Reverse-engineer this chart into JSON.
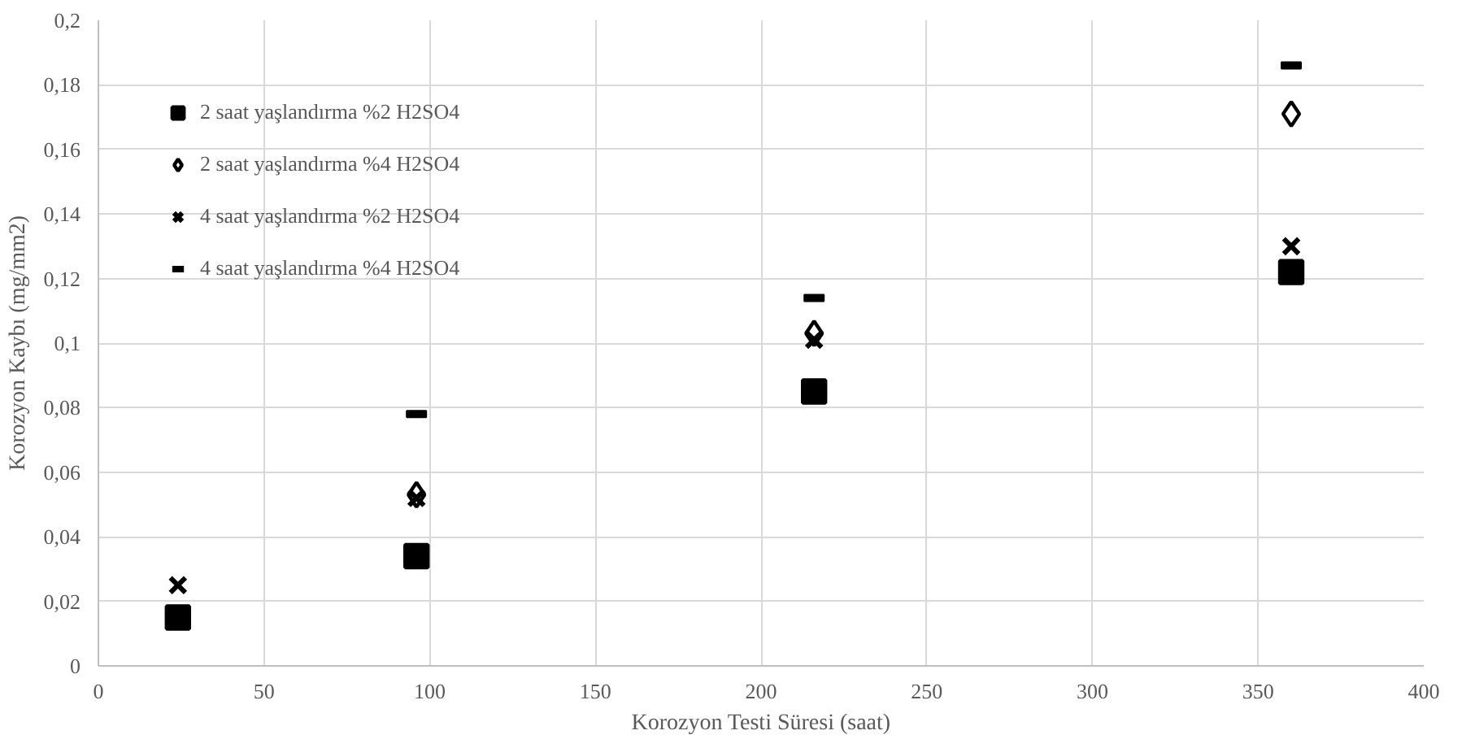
{
  "chart_data": {
    "type": "scatter",
    "xlabel": "Korozyon Testi Süresi (saat)",
    "ylabel": "Korozyon Kaybı (mg/mm2)",
    "x": [
      24,
      96,
      216,
      360
    ],
    "series": [
      {
        "name": "2 saat yaşlandırma %2 H2SO4",
        "color": "#000000",
        "marker": "square",
        "values": [
          0.015,
          0.034,
          0.085,
          0.122
        ]
      },
      {
        "name": "2 saat yaşlandırma %4 H2SO4",
        "color": "#000000",
        "marker": "diamond",
        "values": [
          null,
          0.053,
          0.103,
          0.171
        ]
      },
      {
        "name": "4 saat yaşlandırma %2 H2SO4",
        "color": "#000000",
        "marker": "cross",
        "values": [
          0.025,
          0.052,
          0.101,
          0.13
        ]
      },
      {
        "name": "4 saat yaşlandırma %4 H2SO4",
        "color": "#000000",
        "values": [
          null,
          0.078,
          0.114,
          0.186
        ]
      }
    ],
    "xlim": [
      0,
      400
    ],
    "xticks": [
      0,
      50,
      100,
      150,
      200,
      250,
      300,
      350,
      400
    ],
    "ylim": [
      0,
      0.2
    ],
    "yticks": [
      {
        "value": 0,
        "label": "0"
      },
      {
        "value": 0.02,
        "label": "0,02"
      },
      {
        "value": 0.04,
        "label": "0,04"
      },
      {
        "value": 0.06,
        "label": "0,06"
      },
      {
        "value": 0.08,
        "label": "0,08"
      },
      {
        "value": 0.1,
        "label": "0,1"
      },
      {
        "value": 0.12,
        "label": "0,12"
      },
      {
        "value": 0.14,
        "label": "0,14"
      },
      {
        "value": 0.16,
        "label": "0,16"
      },
      {
        "value": 0.18,
        "label": "0,18"
      },
      {
        "value": 0.2,
        "label": "0,2"
      }
    ],
    "grid": true,
    "legend": "top left"
  }
}
